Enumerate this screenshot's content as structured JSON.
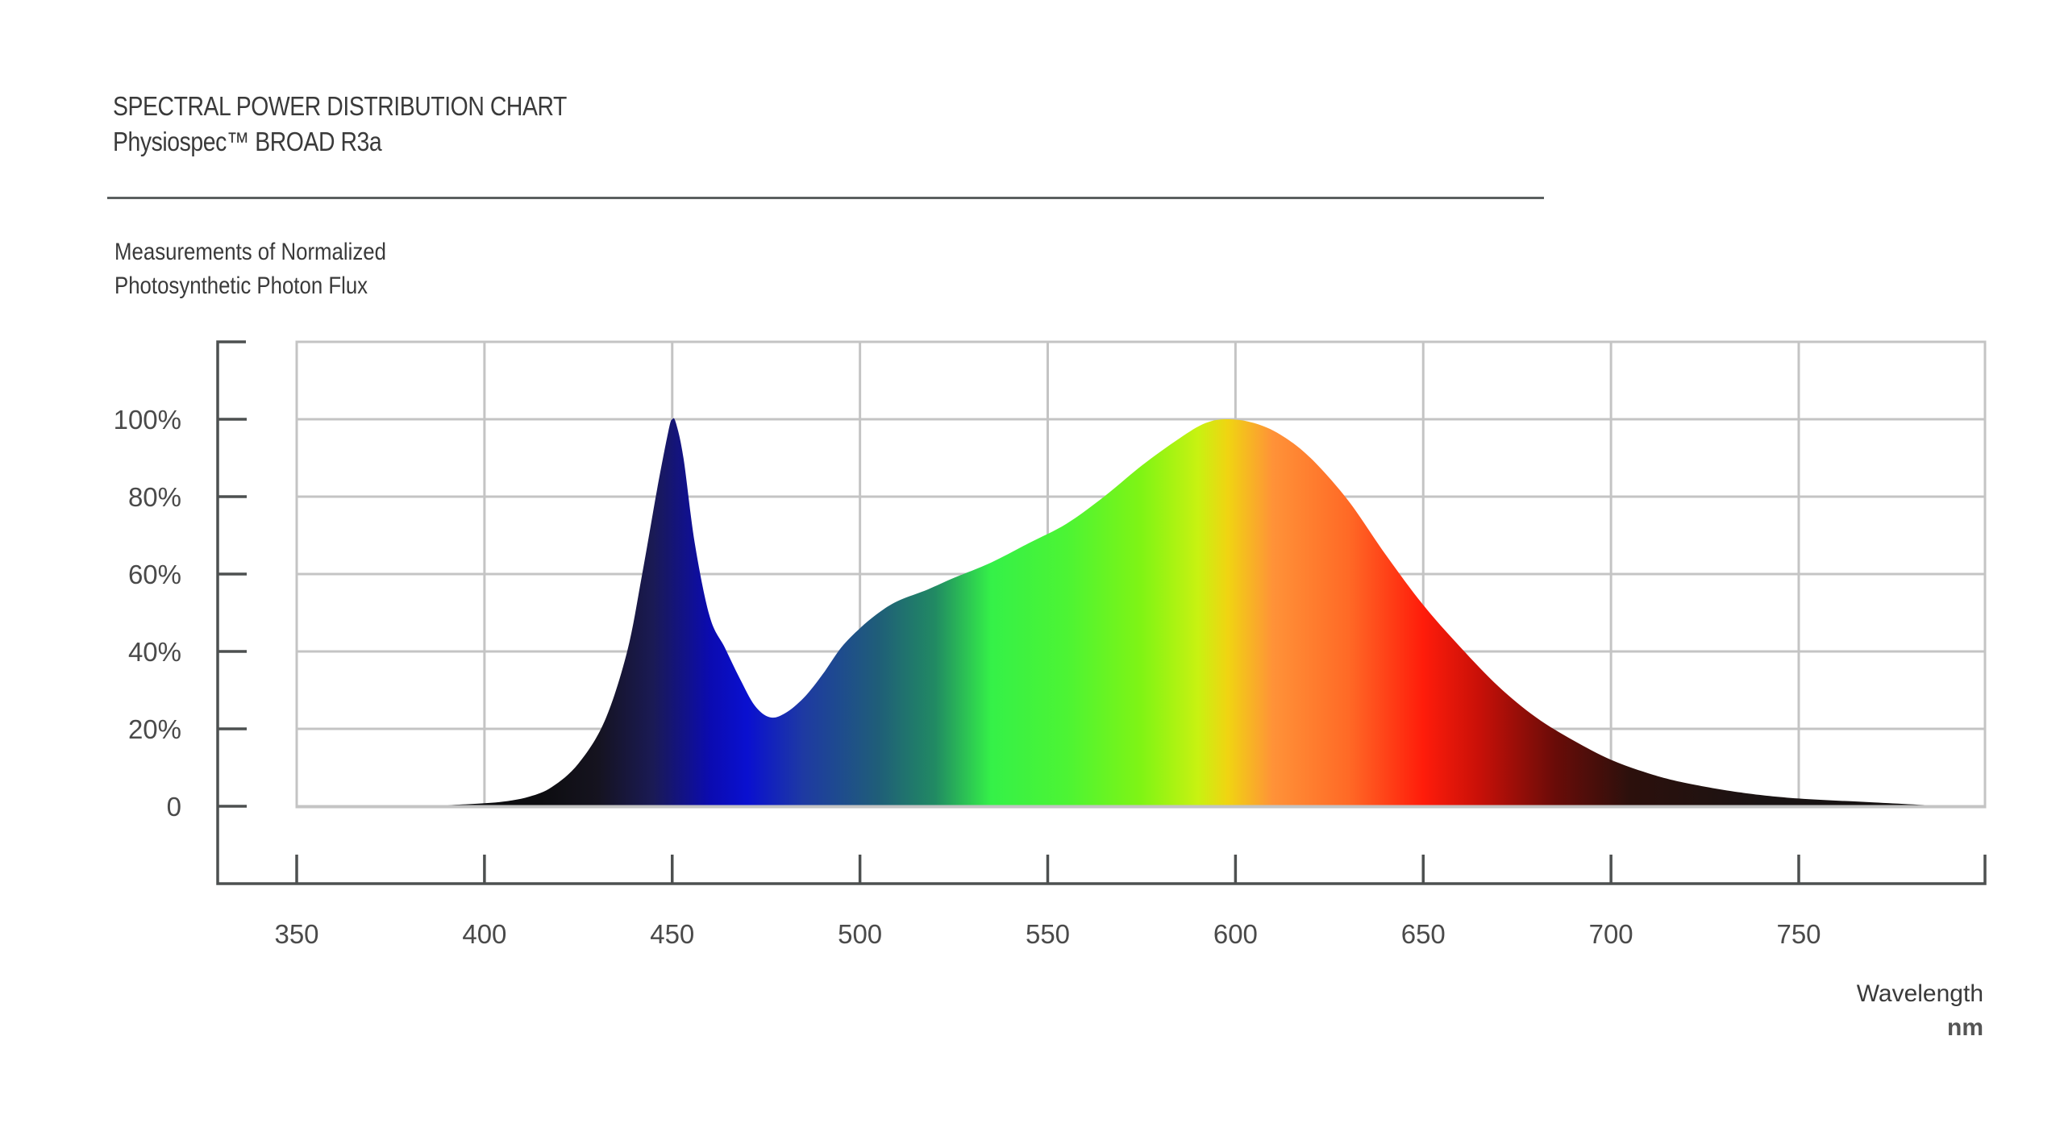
{
  "header": {
    "title": "SPECTRAL POWER DISTRIBUTION CHART",
    "subtitle": "Physiospec™ BROAD R3a"
  },
  "chart_data": {
    "type": "area",
    "ylabel_lines": [
      "Measurements of Normalized",
      "Photosynthetic Photon Flux"
    ],
    "xlabel": "Wavelength",
    "xunit": "nm",
    "xlim": [
      350,
      800
    ],
    "ylim": [
      0,
      100
    ],
    "x_ticks": [
      350,
      400,
      450,
      500,
      550,
      600,
      650,
      700,
      750
    ],
    "x_tick_labels": [
      "350",
      "400",
      "450",
      "500",
      "550",
      "600",
      "650",
      "700",
      "750"
    ],
    "y_ticks": [
      0,
      20,
      40,
      60,
      80,
      100
    ],
    "y_tick_labels": [
      "0",
      "20%",
      "40%",
      "60%",
      "80%",
      "100%"
    ],
    "grid": true,
    "series": [
      {
        "x": [
          380,
          395,
          405,
          412,
          418,
          425,
          432,
          438,
          442,
          446,
          449,
          450,
          451,
          453,
          456,
          460,
          464,
          468,
          472,
          476,
          480,
          485,
          490,
          495,
          500,
          505,
          510,
          518,
          525,
          535,
          545,
          555,
          565,
          575,
          585,
          592,
          598,
          605,
          612,
          620,
          630,
          640,
          650,
          660,
          670,
          680,
          690,
          700,
          710,
          720,
          735,
          750,
          770,
          790
        ],
        "values": [
          0,
          0.5,
          1.2,
          2.5,
          5,
          11,
          22,
          40,
          60,
          82,
          97,
          100,
          99,
          90,
          68,
          49,
          41,
          33,
          26,
          23,
          24,
          28,
          34,
          41,
          46,
          50,
          53,
          56,
          59,
          63,
          68,
          73,
          80,
          88,
          95,
          99,
          100,
          99,
          96,
          90,
          79,
          65,
          52,
          41,
          31,
          23,
          17,
          12,
          8.5,
          6,
          3.5,
          2,
          1,
          0
        ]
      }
    ],
    "fill_gradient": [
      {
        "wavelength": 415,
        "color": "#0d0d10"
      },
      {
        "wavelength": 430,
        "color": "#15131f"
      },
      {
        "wavelength": 445,
        "color": "#1a1a55"
      },
      {
        "wavelength": 460,
        "color": "#0b0bb0"
      },
      {
        "wavelength": 470,
        "color": "#0a10d0"
      },
      {
        "wavelength": 485,
        "color": "#1e3aa2"
      },
      {
        "wavelength": 505,
        "color": "#1f5e78"
      },
      {
        "wavelength": 520,
        "color": "#218a63"
      },
      {
        "wavelength": 535,
        "color": "#35f148"
      },
      {
        "wavelength": 555,
        "color": "#4cf434"
      },
      {
        "wavelength": 575,
        "color": "#80f414"
      },
      {
        "wavelength": 590,
        "color": "#c8f211"
      },
      {
        "wavelength": 598,
        "color": "#f0d412"
      },
      {
        "wavelength": 610,
        "color": "#ff9238"
      },
      {
        "wavelength": 630,
        "color": "#ff6a26"
      },
      {
        "wavelength": 650,
        "color": "#ff1c0a"
      },
      {
        "wavelength": 665,
        "color": "#c81008"
      },
      {
        "wavelength": 685,
        "color": "#6a0c08"
      },
      {
        "wavelength": 705,
        "color": "#2c100c"
      },
      {
        "wavelength": 740,
        "color": "#1a1313"
      },
      {
        "wavelength": 790,
        "color": "#141212"
      }
    ],
    "colors": {
      "grid": "#c4c4c4",
      "axis": "#4d5050",
      "text": "#4a4a4a"
    }
  }
}
